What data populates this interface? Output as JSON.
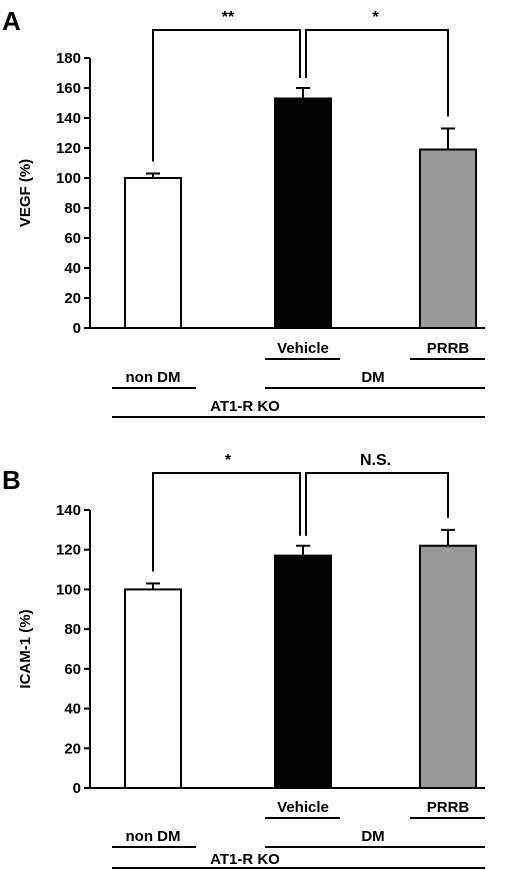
{
  "chart_data": [
    {
      "panel_label": "A",
      "type": "bar",
      "categories": [
        "non DM",
        "Vehicle",
        "PRRB"
      ],
      "values": [
        100,
        153,
        119
      ],
      "errors": [
        3,
        7,
        14
      ],
      "ylabel": "VEGF (%)",
      "ylim": [
        0,
        180
      ],
      "yticks": [
        0,
        20,
        40,
        60,
        80,
        100,
        120,
        140,
        160,
        180
      ],
      "bar_colors": [
        "#ffffff",
        "#000000",
        "#999999"
      ],
      "grid": false,
      "significance": [
        {
          "from": 0,
          "to": 1,
          "label": "**"
        },
        {
          "from": 1,
          "to": 2,
          "label": "*"
        }
      ],
      "group_labels": {
        "dm": "DM",
        "outer": "AT1-R KO"
      }
    },
    {
      "panel_label": "B",
      "type": "bar",
      "categories": [
        "non DM",
        "Vehicle",
        "PRRB"
      ],
      "values": [
        100,
        117,
        122
      ],
      "errors": [
        3,
        5,
        8
      ],
      "ylabel": "ICAM-1 (%)",
      "ylim": [
        0,
        140
      ],
      "yticks": [
        0,
        20,
        40,
        60,
        80,
        100,
        120,
        140
      ],
      "bar_colors": [
        "#ffffff",
        "#000000",
        "#999999"
      ],
      "grid": false,
      "significance": [
        {
          "from": 0,
          "to": 1,
          "label": "*"
        },
        {
          "from": 1,
          "to": 2,
          "label": "N.S."
        }
      ],
      "group_labels": {
        "dm": "DM",
        "outer": "AT1-R KO"
      }
    }
  ]
}
